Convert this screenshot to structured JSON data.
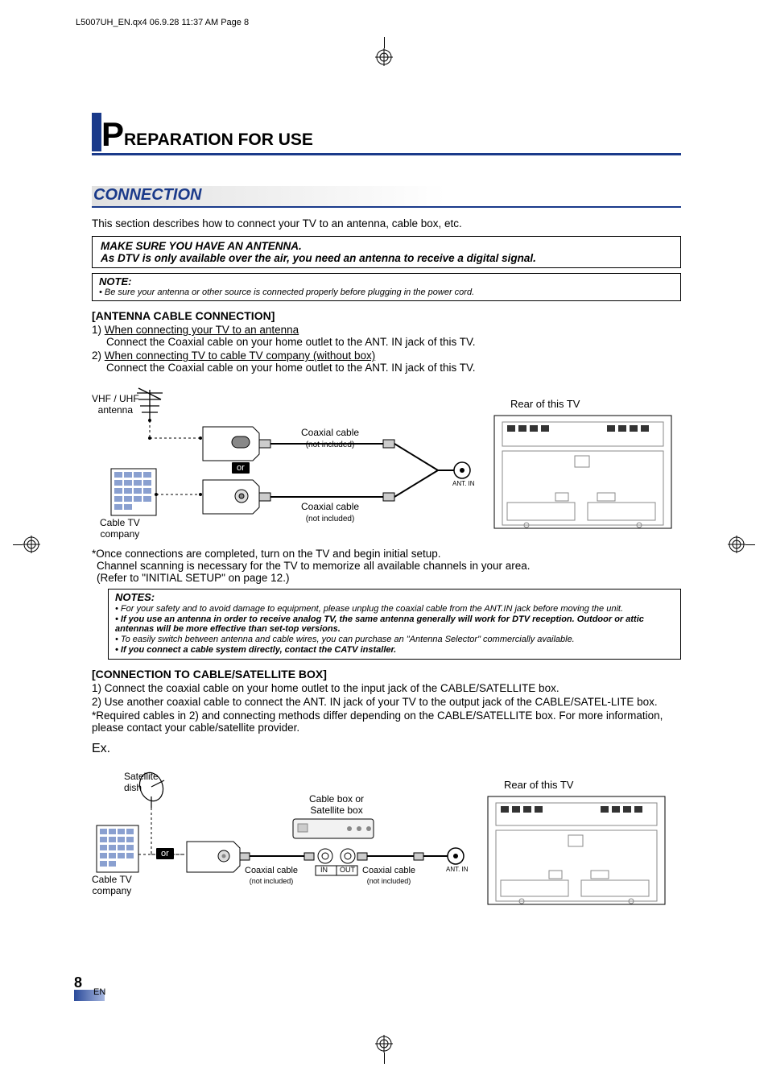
{
  "print_header": "L5007UH_EN.qx4   06.9.28   11:37 AM   Page 8",
  "chapter_first_letter": "P",
  "chapter_rest": "REPARATION FOR USE",
  "section_title": "CONNECTION",
  "intro": "This section describes how to connect your TV to an antenna, cable box, etc.",
  "callout_line1": "MAKE SURE YOU HAVE AN ANTENNA.",
  "callout_line2": "As DTV is only available over the air, you need an antenna to receive a digital signal.",
  "note1_label": "NOTE:",
  "note1_text": "• Be sure your antenna or other source is connected properly before plugging in the power cord.",
  "antenna_sub": "[ANTENNA CABLE CONNECTION]",
  "antenna_step1": "1)",
  "antenna_step1_u": "When connecting your TV to an antenna",
  "antenna_step1_detail": "Connect the Coaxial cable on your home outlet to the ANT. IN jack of this TV.",
  "antenna_step2": "2)",
  "antenna_step2_u": "When connecting TV to cable TV company (without box)",
  "antenna_step2_detail": "Connect the Coaxial cable on your home outlet to the ANT. IN jack of this TV.",
  "diagram1": {
    "vhf_uhf": "VHF / UHF\nantenna",
    "cable_tv": "Cable TV\ncompany",
    "or": "or",
    "coax_label": "Coaxial cable",
    "not_included": "(not included)",
    "rear_label": "Rear of this TV",
    "ant_in": "ANT. IN"
  },
  "post_diagram_star": "*Once connections are completed, turn on the TV and begin initial setup.",
  "post_diagram_l2": "Channel scanning is necessary for the TV to memorize all available channels in your area.",
  "post_diagram_l3": "(Refer to \"INITIAL SETUP\" on page 12.)",
  "notes2_label": "NOTES:",
  "notes2_items": [
    {
      "text": "• For your safety and to avoid damage to equipment, please unplug the coaxial cable from the ANT.IN jack before moving the unit.",
      "bold": false
    },
    {
      "text": "• If you use an antenna in order to receive analog TV, the same antenna generally will work for DTV reception. Outdoor or attic antennas will be more effective than set-top versions.",
      "bold": true
    },
    {
      "text": "• To easily switch between antenna and cable wires, you can purchase an \"Antenna Selector\" commercially available.",
      "bold": false
    },
    {
      "text": "• If you connect a cable system directly, contact the CATV installer.",
      "bold": true
    }
  ],
  "box_sub": "[CONNECTION TO CABLE/SATELLITE BOX]",
  "box_step1": "1) Connect the coaxial cable on your home outlet to the input jack of the CABLE/SATELLITE box.",
  "box_step2": "2) Use another coaxial cable to connect the ANT. IN jack of your TV to the output jack of the CABLE/SATEL-LITE box.",
  "box_star": "*Required cables in 2) and connecting methods differ depending on the CABLE/SATELLITE box. For more information, please contact your cable/satellite provider.",
  "ex": "Ex.",
  "diagram2": {
    "satellite": "Satellite\ndish",
    "cable_tv": "Cable TV\ncompany",
    "or": "or",
    "cable_box": "Cable box or\nSatellite box",
    "in": "IN",
    "out": "OUT",
    "coax_label": "Coaxial cable",
    "not_included": "(not included)",
    "rear_label": "Rear of this TV",
    "ant_in": "ANT. IN"
  },
  "page_number": "8",
  "page_lang": "EN",
  "colors": {
    "accent": "#1a3a8a",
    "gradient_start": "#2a4a9a",
    "gradient_end": "#a8b8e0"
  }
}
